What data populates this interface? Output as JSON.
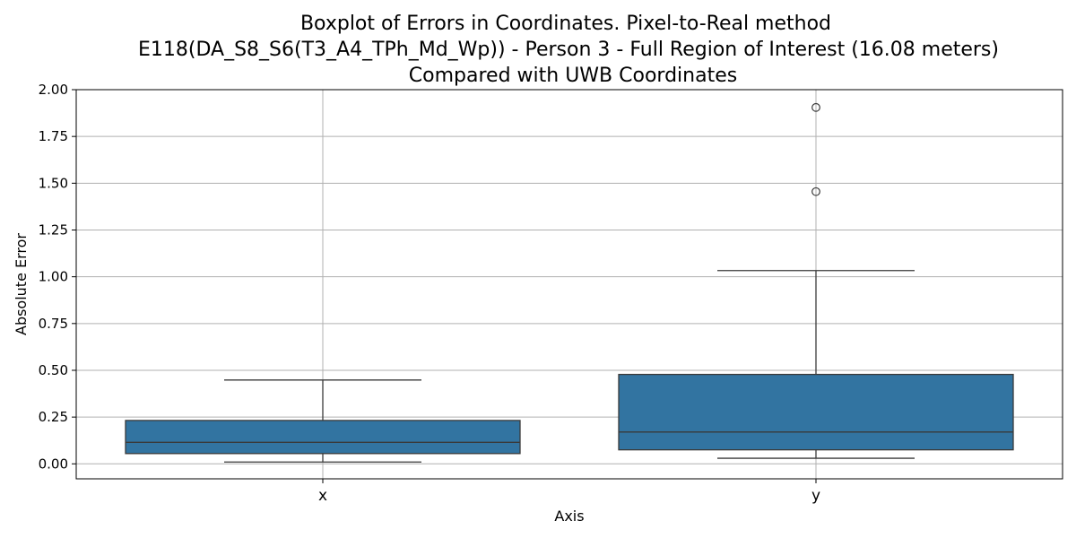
{
  "chart_data": {
    "type": "box",
    "title_lines": [
      "Boxplot of Errors in Coordinates. Pixel-to-Real method",
      "E118(DA_S8_S6(T3_A4_TPh_Md_Wp)) - Person 3 - Full Region of Interest (16.08 meters)",
      "Compared with UWB Coordinates"
    ],
    "xlabel": "Axis",
    "ylabel": "Absolute Error",
    "ylim": [
      -0.08,
      2.0
    ],
    "yticks": [
      0.0,
      0.25,
      0.5,
      0.75,
      1.0,
      1.25,
      1.5,
      1.75,
      2.0
    ],
    "ytick_labels": [
      "0.00",
      "0.25",
      "0.50",
      "0.75",
      "1.00",
      "1.25",
      "1.50",
      "1.75",
      "2.00"
    ],
    "categories": [
      "x",
      "y"
    ],
    "grid": true,
    "box_color": "#3274a1",
    "boxes": [
      {
        "category": "x",
        "whisker_low": 0.01,
        "q1": 0.055,
        "median": 0.115,
        "q3": 0.232,
        "whisker_high": 0.448,
        "outliers": []
      },
      {
        "category": "y",
        "whisker_low": 0.03,
        "q1": 0.075,
        "median": 0.17,
        "q3": 0.478,
        "whisker_high": 1.033,
        "outliers": [
          1.455,
          1.905
        ]
      }
    ]
  }
}
